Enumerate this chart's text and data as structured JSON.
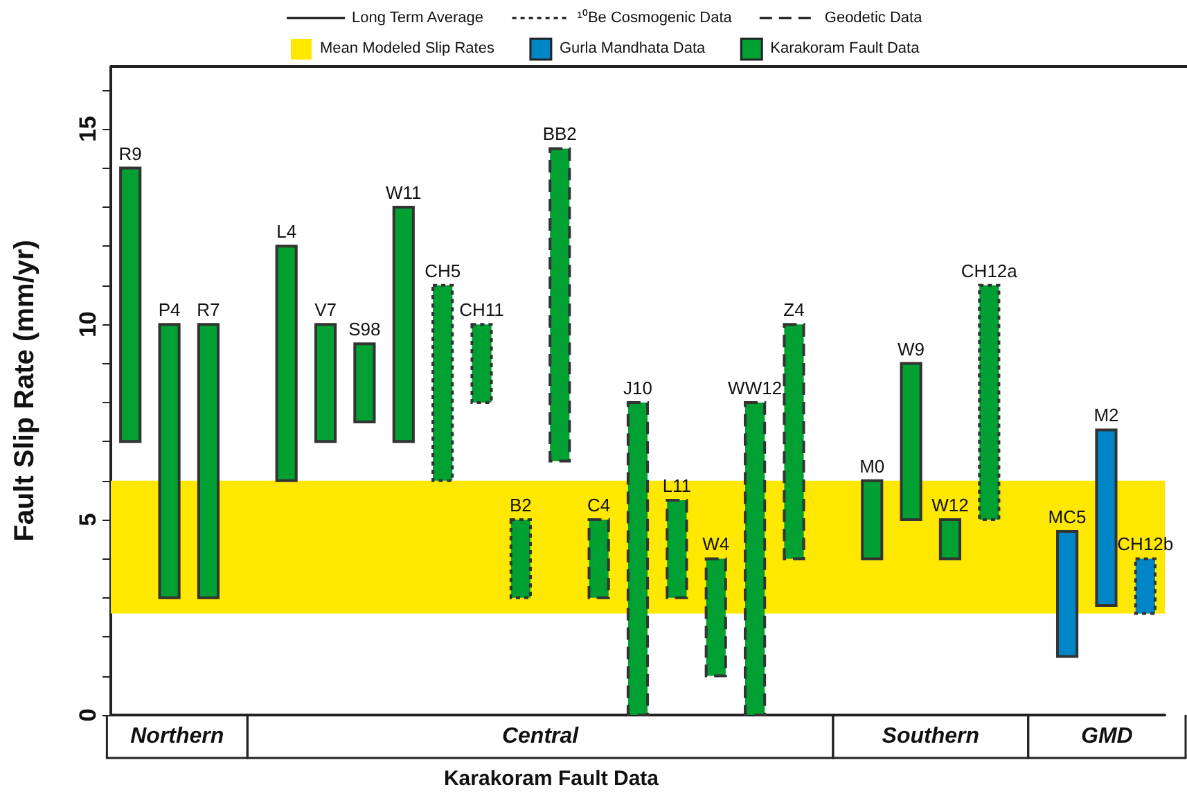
{
  "chart_data": {
    "type": "bar",
    "ylabel": "Fault Slip Rate (mm/yr)",
    "xlabel": "Karakoram Fault Data",
    "categories": [
      "R9",
      "P4",
      "R7",
      null,
      "L4",
      "V7",
      "S98",
      "W11",
      "CH5",
      "CH11",
      "B2",
      "BB2",
      "C4",
      "J10",
      "L11",
      "W4",
      "WW12",
      "Z4",
      null,
      "M0",
      "W9",
      "W12",
      "CH12a",
      null,
      "MC5",
      "M2",
      "CH12b"
    ],
    "series": [
      {
        "name": "Gurla Mandhata Data",
        "color": "#0085c7",
        "line_style": "solid",
        "base": [
          null,
          null,
          null,
          null,
          null,
          null,
          null,
          null,
          null,
          null,
          null,
          null,
          null,
          null,
          null,
          null,
          null,
          null,
          null,
          null,
          null,
          null,
          null,
          null,
          1.5,
          2.8,
          null
        ],
        "values": [
          null,
          null,
          null,
          null,
          null,
          null,
          null,
          null,
          null,
          null,
          null,
          null,
          null,
          null,
          null,
          null,
          null,
          null,
          null,
          null,
          null,
          null,
          null,
          null,
          3.2,
          4.5,
          null
        ]
      },
      {
        "color": "#0085c7",
        "line_style": "dotted",
        "base": [
          null,
          null,
          null,
          null,
          null,
          null,
          null,
          null,
          null,
          null,
          null,
          null,
          null,
          null,
          null,
          null,
          null,
          null,
          null,
          null,
          null,
          null,
          null,
          null,
          null,
          null,
          2.6
        ],
        "values": [
          null,
          null,
          null,
          null,
          null,
          null,
          null,
          null,
          null,
          null,
          null,
          null,
          null,
          null,
          null,
          null,
          null,
          null,
          null,
          null,
          null,
          null,
          null,
          null,
          null,
          null,
          1.4
        ]
      },
      {
        "name": "Karakoram Fault Data",
        "color": "#00a032",
        "line_style": "solid",
        "base": [
          7,
          3,
          3,
          null,
          6,
          7,
          7.5,
          7,
          null,
          null,
          null,
          null,
          null,
          null,
          null,
          null,
          null,
          null,
          null,
          4,
          5,
          4,
          null,
          null,
          null,
          null,
          null
        ],
        "values": [
          7,
          7,
          7,
          null,
          6,
          3,
          2,
          6,
          null,
          null,
          null,
          null,
          null,
          null,
          null,
          null,
          null,
          null,
          null,
          2,
          4,
          1,
          null,
          null,
          null,
          null,
          null
        ]
      },
      {
        "color": "#00a032",
        "line_style": "dotted",
        "base": [
          null,
          null,
          null,
          null,
          null,
          null,
          null,
          null,
          6,
          8,
          3,
          null,
          null,
          null,
          null,
          null,
          null,
          null,
          null,
          null,
          null,
          null,
          5,
          null,
          null,
          null,
          null
        ],
        "values": [
          null,
          null,
          null,
          null,
          null,
          null,
          null,
          null,
          5,
          2,
          2,
          null,
          null,
          null,
          null,
          null,
          null,
          null,
          null,
          null,
          null,
          null,
          6,
          null,
          null,
          null,
          null
        ]
      },
      {
        "color": "#00a032",
        "line_style": "dashed",
        "base": [
          null,
          null,
          null,
          null,
          null,
          null,
          null,
          null,
          null,
          null,
          null,
          6.5,
          3,
          0,
          3,
          1,
          0,
          4,
          null,
          null,
          null,
          null,
          null,
          null,
          null,
          null,
          null
        ],
        "values": [
          null,
          null,
          null,
          null,
          null,
          null,
          null,
          null,
          null,
          null,
          null,
          8,
          2,
          8,
          2.5,
          3,
          8,
          6,
          null,
          null,
          null,
          null,
          null,
          null,
          null,
          null,
          null
        ]
      }
    ],
    "ylim": [
      0,
      16.6
    ],
    "yticks": [
      0,
      {
        "value": 1,
        "label": null
      },
      {
        "value": 2,
        "label": null
      },
      {
        "value": 3,
        "label": null
      },
      {
        "value": 4,
        "label": null
      },
      5,
      {
        "value": 6,
        "label": null
      },
      {
        "value": 7,
        "label": null
      },
      {
        "value": 8,
        "label": null
      },
      {
        "value": 9,
        "label": null
      },
      10,
      {
        "value": 11,
        "label": null
      },
      {
        "value": 12,
        "label": null
      },
      {
        "value": 13,
        "label": null
      },
      {
        "value": 14,
        "label": null
      },
      15,
      {
        "value": 16,
        "label": null
      }
    ],
    "bands": [
      {
        "axis": "y",
        "from": 2.6,
        "to": 6,
        "label": "Mean Modeled Slip Rates",
        "color": "#ffe800"
      }
    ],
    "annotations": [
      "Long Term Average",
      "¹⁰Be Cosmogenic Data",
      "Geodetic Data",
      "Northern",
      "Central",
      "Southern",
      "GMD"
    ],
    "legend": "top",
    "grid": false
  }
}
